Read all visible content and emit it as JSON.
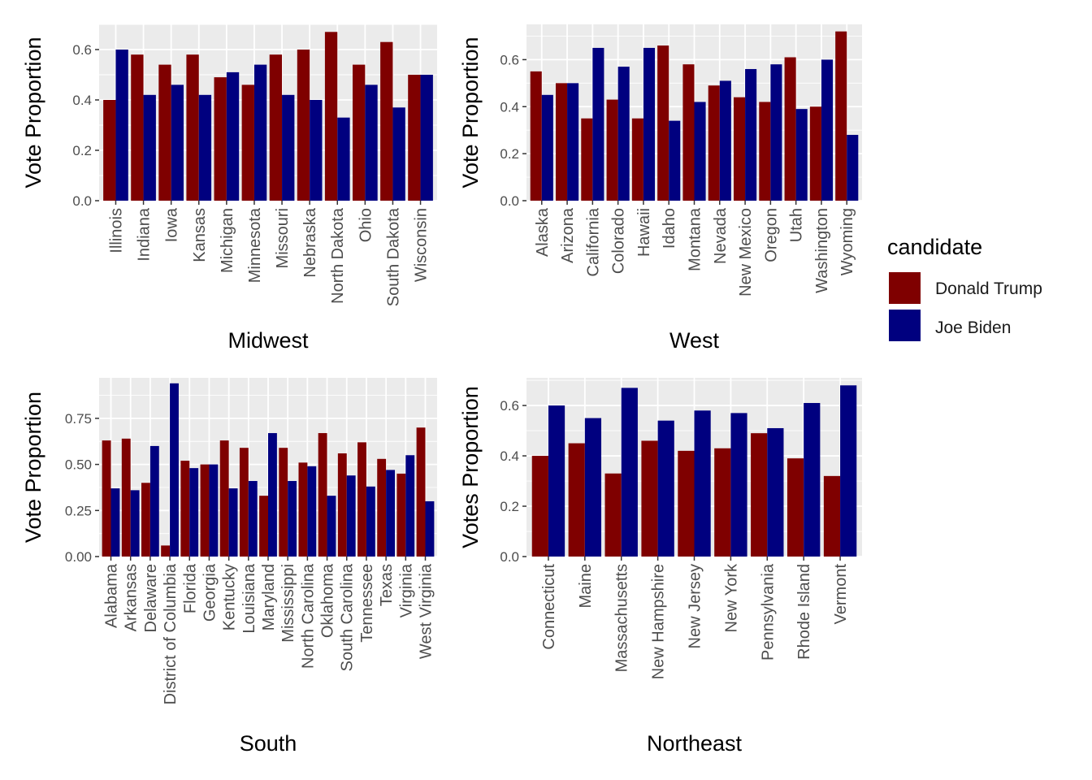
{
  "legend": {
    "title": "candidate",
    "entries": [
      {
        "label": "Donald Trump",
        "color": "#7F0000"
      },
      {
        "label": "Joe Biden",
        "color": "#00007F"
      }
    ]
  },
  "chart_data": [
    {
      "type": "bar",
      "title": "",
      "xlabel": "Midwest",
      "ylabel": "Vote Proportion",
      "ylim": [
        0,
        0.7
      ],
      "yticks": [
        0.0,
        0.2,
        0.4,
        0.6
      ],
      "ytick_labels": [
        "0.0",
        "0.2",
        "0.4",
        "0.6"
      ],
      "grid": true,
      "categories": [
        "Illinois",
        "Indiana",
        "Iowa",
        "Kansas",
        "Michigan",
        "Minnesota",
        "Missouri",
        "Nebraska",
        "North Dakota",
        "Ohio",
        "South Dakota",
        "Wisconsin"
      ],
      "series": [
        {
          "name": "Donald Trump",
          "values": [
            0.4,
            0.58,
            0.54,
            0.58,
            0.49,
            0.46,
            0.58,
            0.6,
            0.67,
            0.54,
            0.63,
            0.5
          ]
        },
        {
          "name": "Joe Biden",
          "values": [
            0.6,
            0.42,
            0.46,
            0.42,
            0.51,
            0.54,
            0.42,
            0.4,
            0.33,
            0.46,
            0.37,
            0.5
          ]
        }
      ]
    },
    {
      "type": "bar",
      "title": "",
      "xlabel": "West",
      "ylabel": "Vote Proportion",
      "ylim": [
        0,
        0.75
      ],
      "yticks": [
        0.0,
        0.2,
        0.4,
        0.6
      ],
      "ytick_labels": [
        "0.0",
        "0.2",
        "0.4",
        "0.6"
      ],
      "grid": true,
      "categories": [
        "Alaska",
        "Arizona",
        "California",
        "Colorado",
        "Hawaii",
        "Idaho",
        "Montana",
        "Nevada",
        "New Mexico",
        "Oregon",
        "Utah",
        "Washington",
        "Wyoming"
      ],
      "series": [
        {
          "name": "Donald Trump",
          "values": [
            0.55,
            0.5,
            0.35,
            0.43,
            0.35,
            0.66,
            0.58,
            0.49,
            0.44,
            0.42,
            0.61,
            0.4,
            0.72
          ]
        },
        {
          "name": "Joe Biden",
          "values": [
            0.45,
            0.5,
            0.65,
            0.57,
            0.65,
            0.34,
            0.42,
            0.51,
            0.56,
            0.58,
            0.39,
            0.6,
            0.28
          ]
        }
      ]
    },
    {
      "type": "bar",
      "title": "",
      "xlabel": "South",
      "ylabel": "Vote Proportion",
      "ylim": [
        0,
        0.97
      ],
      "yticks": [
        0.0,
        0.25,
        0.5,
        0.75
      ],
      "ytick_labels": [
        "0.00",
        "0.25",
        "0.50",
        "0.75"
      ],
      "grid": true,
      "categories": [
        "Alabama",
        "Arkansas",
        "Delaware",
        "District of Columbia",
        "Florida",
        "Georgia",
        "Kentucky",
        "Louisiana",
        "Maryland",
        "Mississippi",
        "North Carolina",
        "Oklahoma",
        "South Carolina",
        "Tennessee",
        "Texas",
        "Virginia",
        "West Virginia"
      ],
      "series": [
        {
          "name": "Donald Trump",
          "values": [
            0.63,
            0.64,
            0.4,
            0.06,
            0.52,
            0.5,
            0.63,
            0.59,
            0.33,
            0.59,
            0.51,
            0.67,
            0.56,
            0.62,
            0.53,
            0.45,
            0.7
          ]
        },
        {
          "name": "Joe Biden",
          "values": [
            0.37,
            0.36,
            0.6,
            0.94,
            0.48,
            0.5,
            0.37,
            0.41,
            0.67,
            0.41,
            0.49,
            0.33,
            0.44,
            0.38,
            0.47,
            0.55,
            0.3
          ]
        }
      ]
    },
    {
      "type": "bar",
      "title": "",
      "xlabel": "Northeast",
      "ylabel": "Votes Proportion",
      "ylim": [
        0,
        0.71
      ],
      "yticks": [
        0.0,
        0.2,
        0.4,
        0.6
      ],
      "ytick_labels": [
        "0.0",
        "0.2",
        "0.4",
        "0.6"
      ],
      "grid": true,
      "categories": [
        "Connecticut",
        "Maine",
        "Massachusetts",
        "New Hampshire",
        "New Jersey",
        "New York",
        "Pennsylvania",
        "Rhode Island",
        "Vermont"
      ],
      "series": [
        {
          "name": "Donald Trump",
          "values": [
            0.4,
            0.45,
            0.33,
            0.46,
            0.42,
            0.43,
            0.49,
            0.39,
            0.32
          ]
        },
        {
          "name": "Joe Biden",
          "values": [
            0.6,
            0.55,
            0.67,
            0.54,
            0.58,
            0.57,
            0.51,
            0.61,
            0.68
          ]
        }
      ]
    }
  ]
}
